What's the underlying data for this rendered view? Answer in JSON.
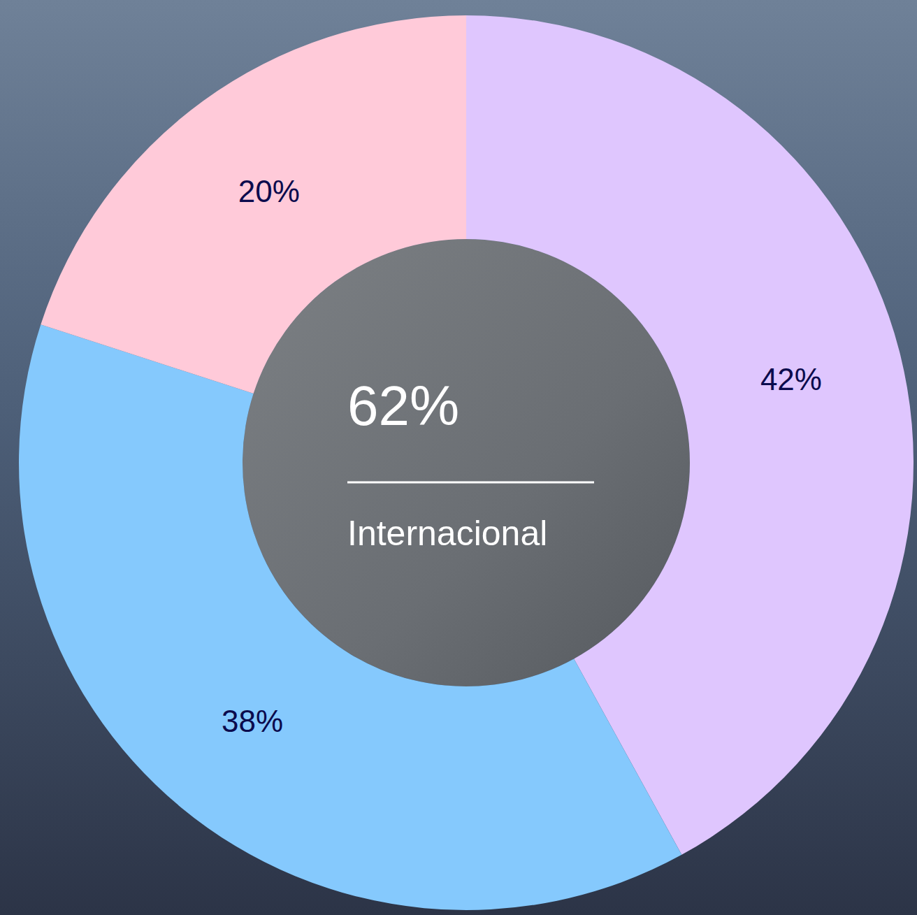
{
  "chart_data": {
    "type": "donut",
    "values": [
      42,
      38,
      20
    ],
    "value_labels": [
      "42%",
      "38%",
      "20%"
    ],
    "colors": [
      "#DFC6FE",
      "#85C9FD",
      "#FFCAD9"
    ],
    "data_labels": true,
    "annotations": [
      "62%",
      "Internacional"
    ]
  }
}
